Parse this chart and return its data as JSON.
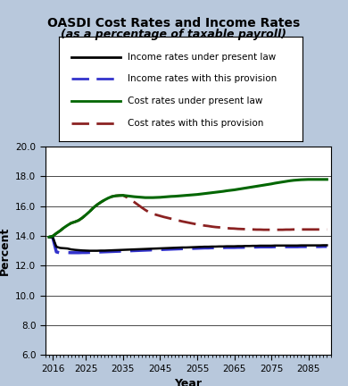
{
  "title_line1": "OASDI Cost Rates and Income Rates",
  "title_line2": "(as a percentage of taxable payroll)",
  "xlabel": "Year",
  "ylabel": "Percent",
  "xlim": [
    2014,
    2091
  ],
  "ylim": [
    6.0,
    20.0
  ],
  "yticks": [
    6.0,
    8.0,
    10.0,
    12.0,
    14.0,
    16.0,
    18.0,
    20.0
  ],
  "xticks": [
    2016,
    2025,
    2035,
    2045,
    2055,
    2065,
    2075,
    2085
  ],
  "xticklabels": [
    "2016",
    "2025",
    "2035",
    "2045",
    "2055",
    "2065",
    "2075",
    "2085"
  ],
  "background_color": "#b8c8dc",
  "plot_background_color": "#ffffff",
  "legend_labels": [
    "Income rates under present law",
    "Income rates with this provision",
    "Cost rates under present law",
    "Cost rates with this provision"
  ],
  "income_present_law_x": [
    2015,
    2016,
    2017,
    2018,
    2019,
    2020,
    2021,
    2022,
    2023,
    2024,
    2025,
    2026,
    2027,
    2028,
    2029,
    2030,
    2031,
    2032,
    2033,
    2034,
    2035,
    2036,
    2037,
    2038,
    2039,
    2040,
    2041,
    2042,
    2043,
    2044,
    2045,
    2046,
    2047,
    2048,
    2049,
    2050,
    2051,
    2052,
    2053,
    2054,
    2055,
    2056,
    2057,
    2058,
    2059,
    2060,
    2061,
    2062,
    2063,
    2064,
    2065,
    2066,
    2067,
    2068,
    2069,
    2070,
    2071,
    2072,
    2073,
    2074,
    2075,
    2076,
    2077,
    2078,
    2079,
    2080,
    2081,
    2082,
    2083,
    2084,
    2085,
    2086,
    2087,
    2088,
    2089,
    2090
  ],
  "income_present_law_y": [
    13.93,
    13.92,
    13.28,
    13.2,
    13.18,
    13.16,
    13.1,
    13.07,
    13.05,
    13.03,
    13.02,
    13.01,
    13.01,
    13.01,
    13.02,
    13.02,
    13.03,
    13.04,
    13.05,
    13.06,
    13.07,
    13.08,
    13.09,
    13.1,
    13.11,
    13.12,
    13.13,
    13.14,
    13.15,
    13.16,
    13.17,
    13.18,
    13.19,
    13.2,
    13.21,
    13.22,
    13.23,
    13.23,
    13.24,
    13.25,
    13.26,
    13.27,
    13.28,
    13.28,
    13.29,
    13.29,
    13.3,
    13.3,
    13.31,
    13.31,
    13.31,
    13.32,
    13.32,
    13.33,
    13.33,
    13.34,
    13.34,
    13.35,
    13.35,
    13.35,
    13.35,
    13.36,
    13.36,
    13.36,
    13.36,
    13.36,
    13.36,
    13.36,
    13.37,
    13.37,
    13.37,
    13.37,
    13.37,
    13.37,
    13.38,
    13.38
  ],
  "income_provision_x": [
    2015,
    2016,
    2017,
    2018,
    2019,
    2020,
    2021,
    2022,
    2023,
    2024,
    2025,
    2026,
    2027,
    2028,
    2029,
    2030,
    2031,
    2032,
    2033,
    2034,
    2035,
    2036,
    2037,
    2038,
    2039,
    2040,
    2041,
    2042,
    2043,
    2044,
    2045,
    2046,
    2047,
    2048,
    2049,
    2050,
    2051,
    2052,
    2053,
    2054,
    2055,
    2056,
    2057,
    2058,
    2059,
    2060,
    2061,
    2062,
    2063,
    2064,
    2065,
    2066,
    2067,
    2068,
    2069,
    2070,
    2071,
    2072,
    2073,
    2074,
    2075,
    2076,
    2077,
    2078,
    2079,
    2080,
    2081,
    2082,
    2083,
    2084,
    2085,
    2086,
    2087,
    2088,
    2089,
    2090
  ],
  "income_provision_y": [
    13.93,
    13.92,
    12.93,
    12.87,
    12.88,
    12.89,
    12.88,
    12.88,
    12.88,
    12.89,
    12.89,
    12.9,
    12.91,
    12.92,
    12.93,
    12.94,
    12.95,
    12.96,
    12.97,
    12.98,
    12.99,
    13.0,
    13.01,
    13.02,
    13.03,
    13.04,
    13.05,
    13.06,
    13.07,
    13.08,
    13.09,
    13.1,
    13.11,
    13.12,
    13.13,
    13.14,
    13.15,
    13.15,
    13.16,
    13.17,
    13.18,
    13.19,
    13.2,
    13.2,
    13.21,
    13.21,
    13.22,
    13.22,
    13.23,
    13.23,
    13.23,
    13.24,
    13.24,
    13.25,
    13.25,
    13.26,
    13.26,
    13.27,
    13.27,
    13.27,
    13.27,
    13.28,
    13.28,
    13.28,
    13.28,
    13.28,
    13.28,
    13.28,
    13.29,
    13.29,
    13.29,
    13.29,
    13.29,
    13.29,
    13.3,
    13.3
  ],
  "cost_present_law_x": [
    2015,
    2016,
    2017,
    2018,
    2019,
    2020,
    2021,
    2022,
    2023,
    2024,
    2025,
    2026,
    2027,
    2028,
    2029,
    2030,
    2031,
    2032,
    2033,
    2034,
    2035,
    2036,
    2037,
    2038,
    2039,
    2040,
    2041,
    2042,
    2043,
    2044,
    2045,
    2046,
    2047,
    2048,
    2049,
    2050,
    2051,
    2052,
    2053,
    2054,
    2055,
    2056,
    2057,
    2058,
    2059,
    2060,
    2061,
    2062,
    2063,
    2064,
    2065,
    2066,
    2067,
    2068,
    2069,
    2070,
    2071,
    2072,
    2073,
    2074,
    2075,
    2076,
    2077,
    2078,
    2079,
    2080,
    2081,
    2082,
    2083,
    2084,
    2085,
    2086,
    2087,
    2088,
    2089,
    2090
  ],
  "cost_present_law_y": [
    13.93,
    13.99,
    14.18,
    14.35,
    14.55,
    14.72,
    14.87,
    14.95,
    15.05,
    15.22,
    15.43,
    15.65,
    15.9,
    16.1,
    16.27,
    16.42,
    16.55,
    16.65,
    16.7,
    16.72,
    16.73,
    16.7,
    16.67,
    16.64,
    16.62,
    16.6,
    16.58,
    16.58,
    16.58,
    16.59,
    16.6,
    16.62,
    16.64,
    16.66,
    16.67,
    16.69,
    16.71,
    16.73,
    16.75,
    16.77,
    16.79,
    16.82,
    16.85,
    16.88,
    16.91,
    16.94,
    16.97,
    17.0,
    17.04,
    17.07,
    17.1,
    17.14,
    17.18,
    17.22,
    17.26,
    17.3,
    17.34,
    17.38,
    17.42,
    17.46,
    17.5,
    17.55,
    17.59,
    17.63,
    17.67,
    17.71,
    17.74,
    17.76,
    17.78,
    17.79,
    17.8,
    17.8,
    17.8,
    17.8,
    17.8,
    17.8
  ],
  "cost_provision_x": [
    2015,
    2016,
    2017,
    2018,
    2019,
    2020,
    2021,
    2022,
    2023,
    2024,
    2025,
    2026,
    2027,
    2028,
    2029,
    2030,
    2031,
    2032,
    2033,
    2034,
    2035,
    2036,
    2037,
    2038,
    2039,
    2040,
    2041,
    2042,
    2043,
    2044,
    2045,
    2046,
    2047,
    2048,
    2049,
    2050,
    2051,
    2052,
    2053,
    2054,
    2055,
    2056,
    2057,
    2058,
    2059,
    2060,
    2061,
    2062,
    2063,
    2064,
    2065,
    2066,
    2067,
    2068,
    2069,
    2070,
    2071,
    2072,
    2073,
    2074,
    2075,
    2076,
    2077,
    2078,
    2079,
    2080,
    2081,
    2082,
    2083,
    2084,
    2085,
    2086,
    2087,
    2088,
    2089,
    2090
  ],
  "cost_provision_y": [
    13.93,
    13.99,
    14.18,
    14.35,
    14.55,
    14.72,
    14.87,
    14.95,
    15.05,
    15.22,
    15.43,
    15.65,
    15.9,
    16.1,
    16.27,
    16.42,
    16.55,
    16.65,
    16.7,
    16.72,
    16.73,
    16.6,
    16.45,
    16.28,
    16.1,
    15.92,
    15.75,
    15.6,
    15.5,
    15.42,
    15.35,
    15.28,
    15.22,
    15.16,
    15.1,
    15.04,
    14.98,
    14.93,
    14.88,
    14.83,
    14.78,
    14.74,
    14.7,
    14.67,
    14.63,
    14.6,
    14.58,
    14.55,
    14.53,
    14.51,
    14.5,
    14.48,
    14.47,
    14.46,
    14.45,
    14.44,
    14.43,
    14.43,
    14.42,
    14.42,
    14.42,
    14.42,
    14.42,
    14.42,
    14.43,
    14.43,
    14.44,
    14.44,
    14.44,
    14.44,
    14.44,
    14.44,
    14.44,
    14.44,
    14.44,
    14.44
  ]
}
